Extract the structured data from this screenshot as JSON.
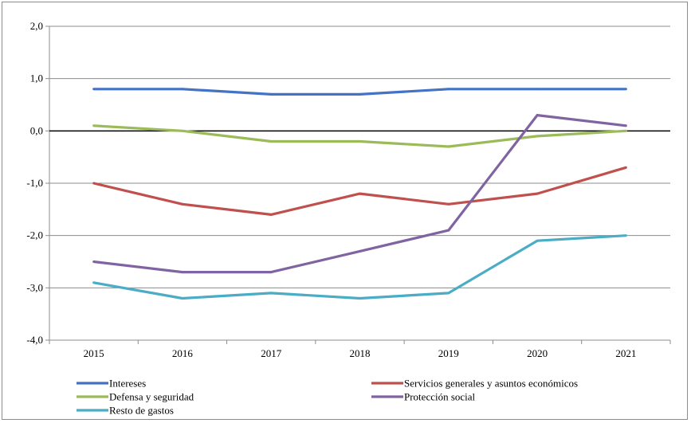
{
  "chart_data": {
    "type": "line",
    "title": "",
    "xlabel": "",
    "ylabel": "",
    "categories": [
      "2015",
      "2016",
      "2017",
      "2018",
      "2019",
      "2020",
      "2021"
    ],
    "ylim": [
      -4.0,
      2.0
    ],
    "yticks": [
      2.0,
      1.0,
      0.0,
      -1.0,
      -2.0,
      -3.0,
      -4.0
    ],
    "ytick_labels": [
      "2,0",
      "1,0",
      "0,0",
      "-1,0",
      "-2,0",
      "-3,0",
      "-4,0"
    ],
    "grid": "horizontal",
    "legend_position": "bottom",
    "series": [
      {
        "name": "Intereses",
        "color": "#4472c4",
        "values": [
          0.8,
          0.8,
          0.7,
          0.7,
          0.8,
          0.8,
          0.8
        ]
      },
      {
        "name": "Servicios generales y asuntos económicos",
        "color": "#c0504d",
        "values": [
          -1.0,
          -1.4,
          -1.6,
          -1.2,
          -1.4,
          -1.2,
          -0.7
        ]
      },
      {
        "name": "Defensa y seguridad",
        "color": "#9bbb59",
        "values": [
          0.1,
          0.0,
          -0.2,
          -0.2,
          -0.3,
          -0.1,
          0.0
        ]
      },
      {
        "name": "Protección social",
        "color": "#8064a2",
        "values": [
          -2.5,
          -2.7,
          -2.7,
          -2.3,
          -1.9,
          0.3,
          0.1
        ]
      },
      {
        "name": "Resto de gastos",
        "color": "#4bacc6",
        "values": [
          -2.9,
          -3.2,
          -3.1,
          -3.2,
          -3.1,
          -2.1,
          -2.0
        ]
      }
    ]
  }
}
